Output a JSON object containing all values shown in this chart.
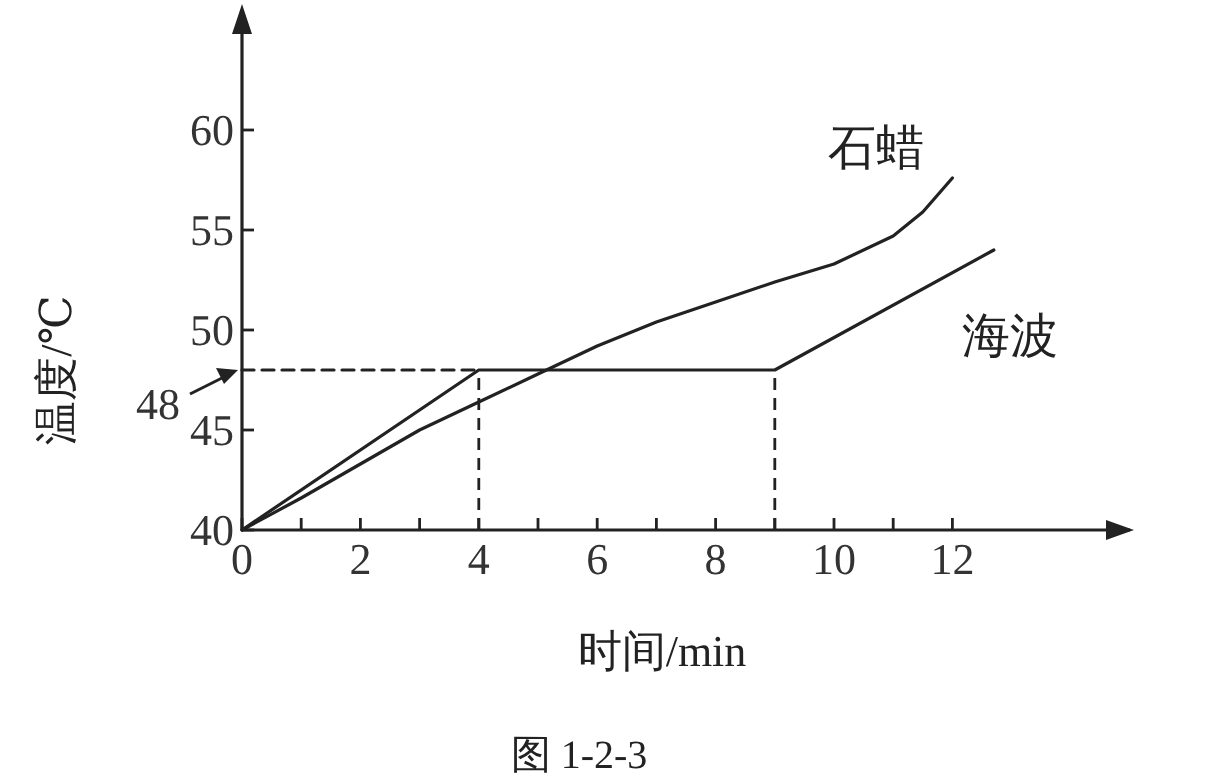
{
  "chart_data": {
    "type": "line",
    "xlabel": "时间/min",
    "ylabel": "温度/℃",
    "xlim": [
      0,
      15
    ],
    "ylim": [
      40,
      66
    ],
    "xticks": [
      0,
      {
        "value": 1,
        "label": null
      },
      2,
      {
        "value": 3,
        "label": null
      },
      4,
      {
        "value": 5,
        "label": null
      },
      6,
      {
        "value": 7,
        "label": null
      },
      8,
      {
        "value": 9,
        "label": null
      },
      10,
      {
        "value": 11,
        "label": null
      },
      12
    ],
    "yticks": [
      40,
      45,
      50,
      55,
      60
    ],
    "grid": false,
    "marker": "none",
    "ref_lines": [
      {
        "axis": "x",
        "value": 4,
        "color": "#222222",
        "line_style": "dashed"
      },
      {
        "axis": "x",
        "value": 9,
        "color": "#222222",
        "line_style": "dashed"
      }
    ],
    "annotations": [
      {
        "text": "48",
        "x": 0,
        "y": 48
      },
      "图 1-2-3"
    ],
    "series": [
      {
        "name": "石蜡",
        "color": "#222222",
        "line_style": "solid",
        "x": [
          0,
          1,
          2,
          3,
          4,
          5,
          6,
          7,
          8,
          9,
          10,
          11,
          11.5,
          12
        ],
        "values": [
          40,
          41.6,
          43.3,
          45,
          46.4,
          47.8,
          49.2,
          50.4,
          51.4,
          52.4,
          53.3,
          54.7,
          55.9,
          57.6
        ]
      },
      {
        "name": "海波",
        "color": "#222222",
        "line_style": "solid",
        "x": [
          0,
          4,
          9,
          12.7
        ],
        "values": [
          40,
          48,
          48,
          54
        ]
      },
      {
        "color": "#222222",
        "line_style": "dashed",
        "x": [
          0,
          4
        ],
        "values": [
          48,
          48
        ]
      }
    ]
  }
}
